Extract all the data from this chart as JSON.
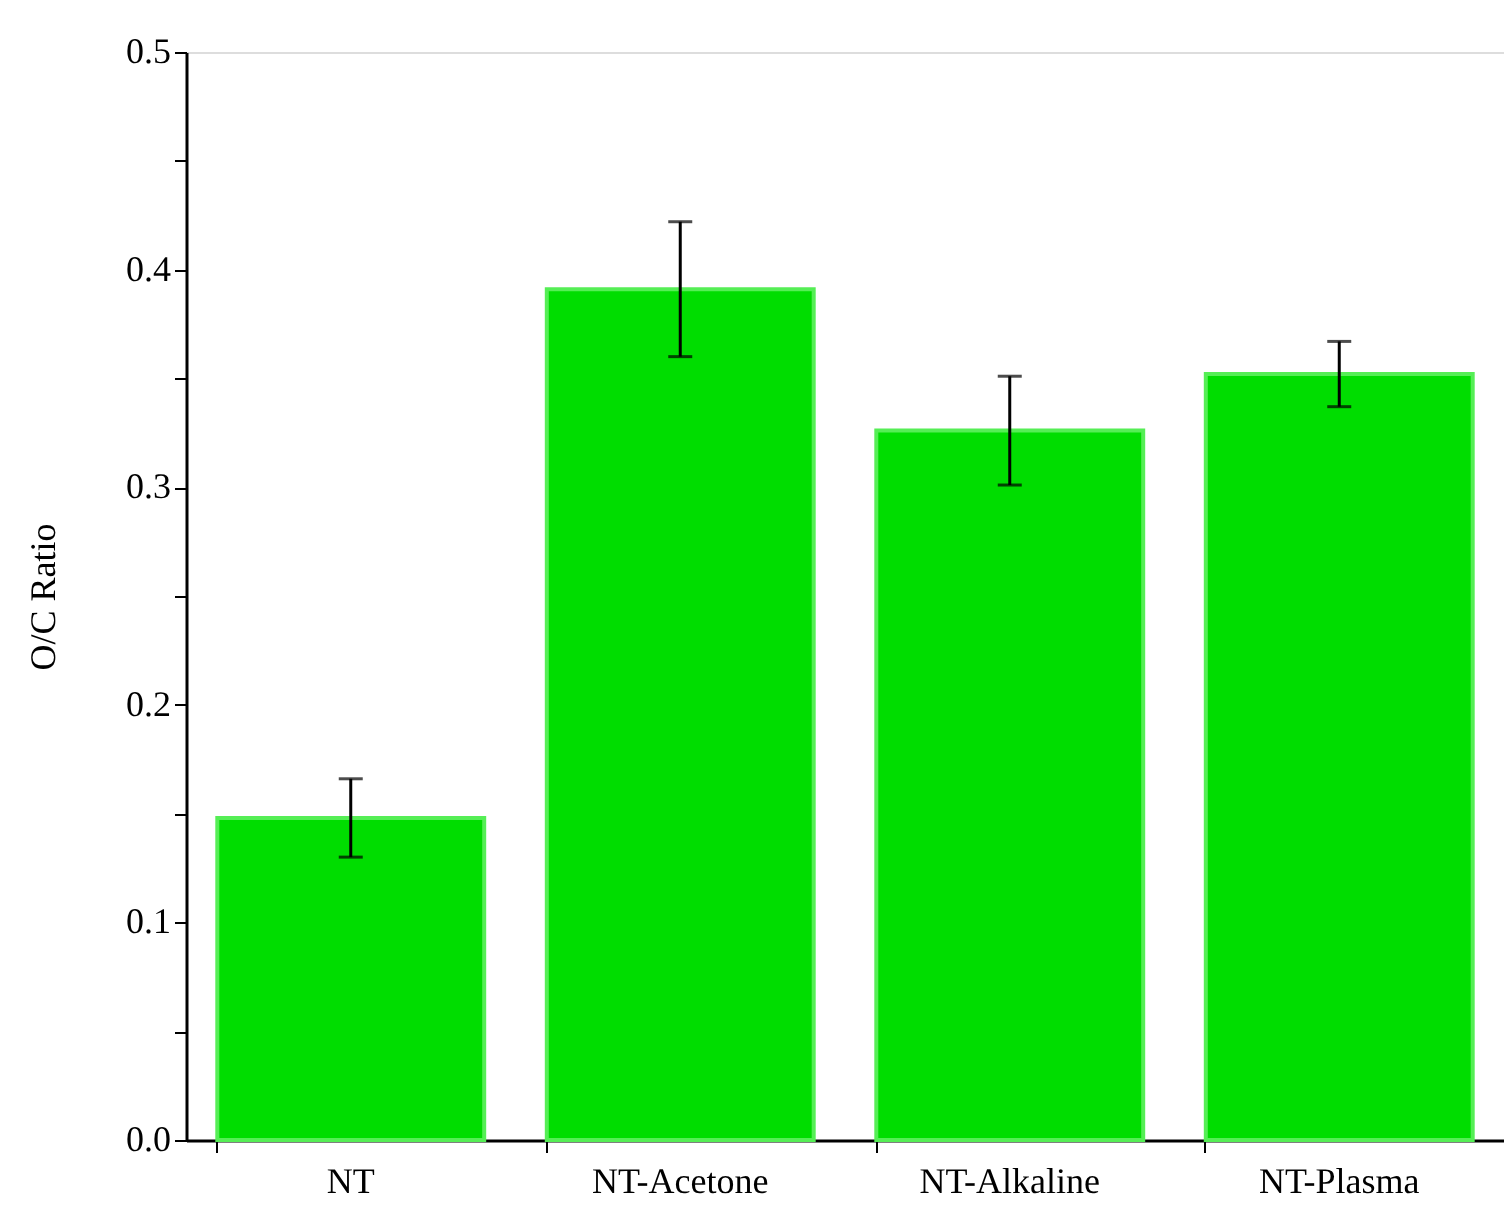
{
  "chart_data": {
    "type": "bar",
    "ylabel": "O/C Ratio",
    "categories": [
      "NT",
      "NT-Acetone",
      "NT-Alkaline",
      "NT-Plasma"
    ],
    "values": [
      0.148,
      0.391,
      0.326,
      0.352
    ],
    "errors": [
      0.018,
      0.031,
      0.025,
      0.015
    ],
    "color": "#00dd00",
    "ylim": [
      0,
      0.5
    ],
    "yticks": [
      {
        "value": 0,
        "label": "0.0"
      },
      {
        "value": 0.05,
        "label": null
      },
      0.1,
      {
        "value": 0.15,
        "label": null
      },
      0.2,
      {
        "value": 0.25,
        "label": null
      },
      0.3,
      {
        "value": 0.35,
        "label": null
      },
      0.4,
      {
        "value": 0.45,
        "label": null
      },
      0.5
    ],
    "grid": false
  }
}
